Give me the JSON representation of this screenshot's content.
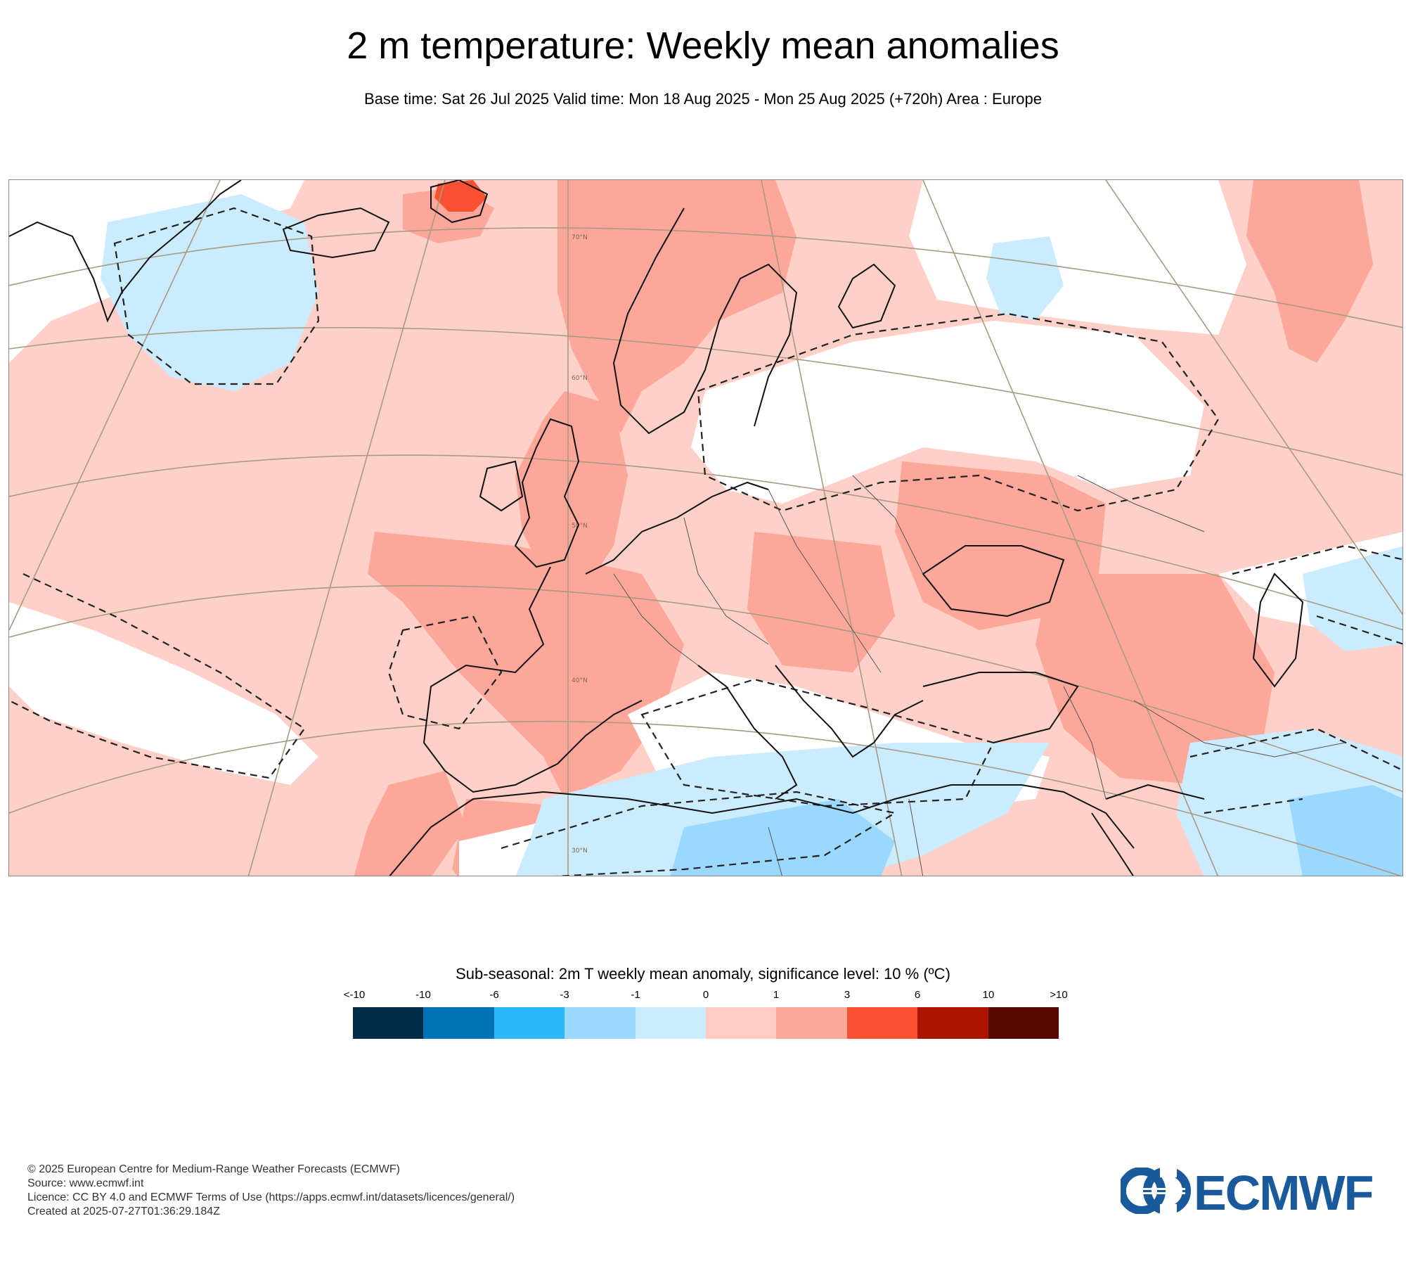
{
  "title": "2 m temperature: Weekly mean anomalies",
  "subtitle": "Base time: Sat 26 Jul 2025 Valid time: Mon 18 Aug 2025 - Mon 25 Aug 2025 (+720h) Area : Europe",
  "map": {
    "lat_labels": [
      "70°N",
      "60°N",
      "50°N",
      "40°N",
      "30°N"
    ],
    "colors": {
      "ocean_warm": "#ffd0c8",
      "warm": "#fca799",
      "hot": "#fb5032",
      "neutral": "#ffffff",
      "cool": "#cbebff",
      "cold": "#9bd8ff",
      "coast": "#111111",
      "grid": "#a89a82"
    }
  },
  "legend": {
    "title": "Sub-seasonal: 2m T weekly mean anomaly, significance level: 10 % (ºC)",
    "ticks": [
      "<-10",
      "-10",
      "-6",
      "-3",
      "-1",
      "0",
      "1",
      "3",
      "6",
      "10",
      ">10"
    ],
    "colors": [
      "#002c47",
      "#0073b4",
      "#2ab7fb",
      "#9bd8ff",
      "#cbebff",
      "#ffcbc3",
      "#fca799",
      "#fb5032",
      "#ac1400",
      "#5a0800"
    ]
  },
  "footer": {
    "copyright": "© 2025 European Centre for Medium-Range Weather Forecasts (ECMWF)",
    "source": "Source: www.ecmwf.int",
    "licence": "Licence: CC BY 4.0 and ECMWF Terms of Use (https://apps.ecmwf.int/datasets/licences/general/)",
    "created": "Created at 2025-07-27T01:36:29.184Z"
  },
  "logo": {
    "text": "ECMWF",
    "color": "#1a5a9a"
  }
}
